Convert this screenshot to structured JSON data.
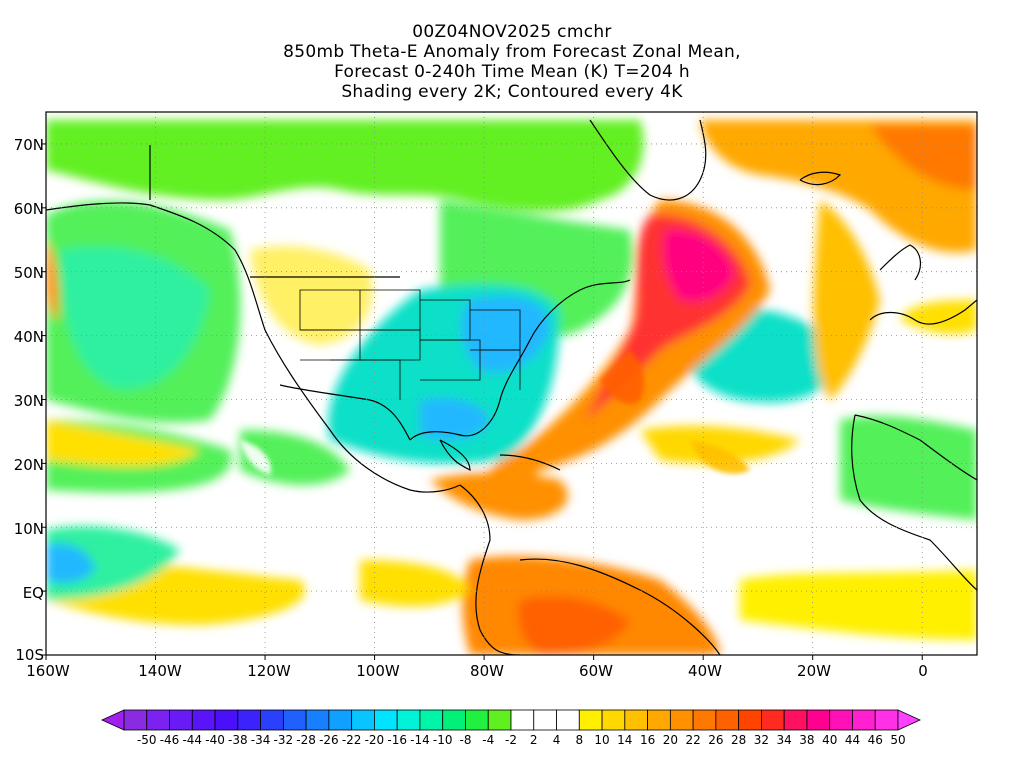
{
  "title": {
    "line1": "00Z04NOV2025 cmchr",
    "line2": "850mb Theta-E Anomaly from Forecast Zonal Mean,",
    "line3": "Forecast 0-240h Time Mean (K) T=204 h",
    "line4": "Shading every 2K; Contoured every 4K"
  },
  "map": {
    "lon_range": [
      -160,
      10
    ],
    "lat_range": [
      -10,
      75
    ],
    "lat_labels": [
      "70N",
      "60N",
      "50N",
      "40N",
      "30N",
      "20N",
      "10N",
      "EQ",
      "10S"
    ],
    "lat_values": [
      70,
      60,
      50,
      40,
      30,
      20,
      10,
      0,
      -10
    ],
    "lon_labels": [
      "160W",
      "140W",
      "120W",
      "100W",
      "80W",
      "60W",
      "40W",
      "20W",
      "0"
    ],
    "lon_values": [
      -160,
      -140,
      -120,
      -100,
      -80,
      -60,
      -40,
      -20,
      0
    ],
    "grid": "dotted"
  },
  "colorbar": {
    "tick_labels": [
      "-50",
      "-46",
      "-44",
      "-40",
      "-38",
      "-34",
      "-32",
      "-28",
      "-26",
      "-22",
      "-20",
      "-16",
      "-14",
      "-10",
      "-8",
      "-4",
      "-2",
      "2",
      "4",
      "8",
      "10",
      "14",
      "16",
      "20",
      "22",
      "26",
      "28",
      "32",
      "34",
      "38",
      "40",
      "44",
      "46",
      "50"
    ],
    "colors": [
      "#8a2be2",
      "#7b22f0",
      "#6a1bf5",
      "#5a14f8",
      "#4b10fa",
      "#3a24fb",
      "#2a40fc",
      "#2060fd",
      "#1780fe",
      "#10a0ff",
      "#08c4ff",
      "#00e4ff",
      "#00f2d8",
      "#00f5a8",
      "#00f078",
      "#20f040",
      "#60f020",
      "#ffffff",
      "#ffffff",
      "#ffffff",
      "#fff000",
      "#ffd800",
      "#ffc000",
      "#ffa800",
      "#ff9000",
      "#ff7800",
      "#ff6000",
      "#ff4400",
      "#ff2a20",
      "#ff1060",
      "#ff0090",
      "#ff10b8",
      "#ff20d0",
      "#ff30e6"
    ],
    "under_color": "#a020f0",
    "over_color": "#ff40ff"
  }
}
